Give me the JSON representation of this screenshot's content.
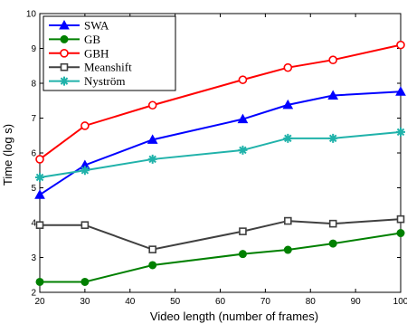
{
  "chart_data": {
    "type": "line",
    "xlabel": "Video length (number of frames)",
    "ylabel": "Time (log s)",
    "xlim": [
      20,
      100
    ],
    "ylim": [
      2,
      10
    ],
    "xticks": [
      20,
      30,
      40,
      50,
      60,
      70,
      80,
      90,
      100
    ],
    "yticks": [
      2,
      3,
      4,
      5,
      6,
      7,
      8,
      9,
      10
    ],
    "grid": false,
    "legend_position": "top-left",
    "series": [
      {
        "name": "SWA",
        "color": "#0000ff",
        "marker": "triangle",
        "x": [
          20,
          30,
          45,
          65,
          75,
          85,
          100
        ],
        "y": [
          4.8,
          5.65,
          6.38,
          6.97,
          7.38,
          7.65,
          7.76
        ]
      },
      {
        "name": "GB",
        "color": "#008000",
        "marker": "circle-filled",
        "x": [
          20,
          30,
          45,
          65,
          75,
          85,
          100
        ],
        "y": [
          2.3,
          2.3,
          2.78,
          3.1,
          3.22,
          3.4,
          3.7
        ]
      },
      {
        "name": "GBH",
        "color": "#ff0000",
        "marker": "circle-open",
        "x": [
          20,
          30,
          45,
          65,
          75,
          85,
          100
        ],
        "y": [
          5.82,
          6.78,
          7.37,
          8.1,
          8.45,
          8.67,
          9.1
        ]
      },
      {
        "name": "Meanshift",
        "color": "#404040",
        "marker": "square",
        "x": [
          20,
          30,
          45,
          65,
          75,
          85,
          100
        ],
        "y": [
          3.93,
          3.93,
          3.23,
          3.75,
          4.05,
          3.97,
          4.1
        ]
      },
      {
        "name": "Nyström",
        "color": "#20b2aa",
        "marker": "star",
        "x": [
          20,
          30,
          45,
          65,
          75,
          85,
          100
        ],
        "y": [
          5.3,
          5.5,
          5.82,
          6.08,
          6.42,
          6.42,
          6.6
        ]
      }
    ]
  }
}
